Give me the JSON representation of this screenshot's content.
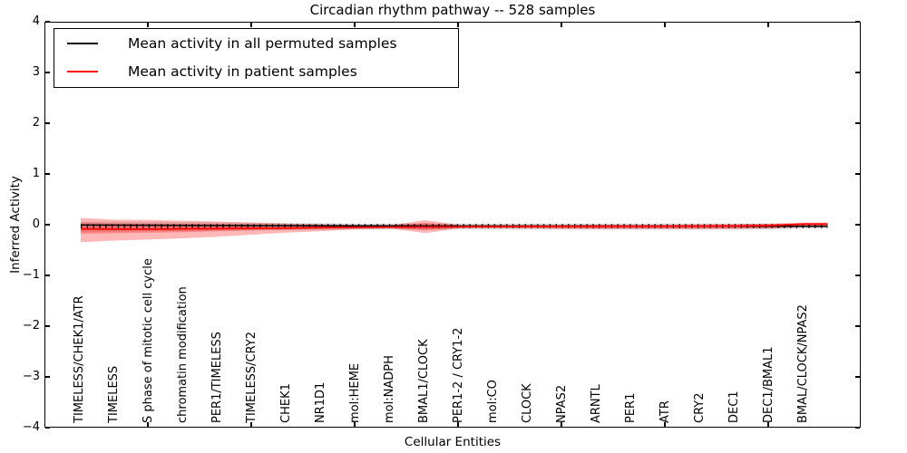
{
  "figure": {
    "title": "Circadian rhythm pathway -- 528 samples",
    "xlabel": "Cellular Entities",
    "ylabel": "Inferred Activity"
  },
  "legend": {
    "entries": [
      {
        "label": "Mean activity in all permuted samples",
        "color": "#000000"
      },
      {
        "label": "Mean activity in patient samples",
        "color": "#ff0000"
      }
    ]
  },
  "axes": {
    "y_tick_labels": [
      "4",
      "3",
      "2",
      "1",
      "0",
      "−1",
      "−2",
      "−3",
      "−4"
    ],
    "y_tick_values": [
      4,
      3,
      2,
      1,
      0,
      -1,
      -2,
      -3,
      -4
    ],
    "ylim": [
      -4,
      4
    ]
  },
  "colors": {
    "permuted_line": "#000000",
    "patient_line": "#ff0000",
    "patient_band_fill": "#ff0000",
    "permuted_band_fill": "#aaaaaa"
  },
  "chart_data": {
    "type": "line",
    "title": "Circadian rhythm pathway -- 528 samples",
    "xlabel": "Cellular Entities",
    "ylabel": "Inferred Activity",
    "ylim": [
      -4,
      4
    ],
    "grid": false,
    "legend_position": "upper left",
    "categories": [
      "TIMELESS/CHEK1/ATR",
      "TIMELESS",
      "S phase of mitotic cell cycle",
      "chromatin modification",
      "PER1/TIMELESS",
      "TIMELESS/CRY2",
      "CHEK1",
      "NR1D1",
      "mol:HEME",
      "mol:NADPH",
      "BMAL1/CLOCK",
      "PER1-2 / CRY1-2",
      "mol:CO",
      "CLOCK",
      "NPAS2",
      "ARNTL",
      "PER1",
      "ATR",
      "CRY2",
      "DEC1",
      "DEC1/BMAL1",
      "BMAL/CLOCK/NPAS2"
    ],
    "series": [
      {
        "name": "Mean activity in all permuted samples",
        "color": "#000000",
        "values": [
          0.02,
          0.018,
          0.016,
          0.014,
          0.012,
          0.01,
          0.008,
          0.006,
          0.005,
          0.004,
          0.003,
          0.002,
          0.001,
          0.0,
          0.0,
          -0.001,
          -0.002,
          -0.003,
          -0.004,
          -0.004,
          -0.005,
          -0.005
        ],
        "band_upper": [
          0.09,
          0.085,
          0.08,
          0.075,
          0.07,
          0.065,
          0.06,
          0.055,
          0.05,
          0.05,
          0.05,
          0.05,
          0.05,
          0.05,
          0.05,
          0.05,
          0.05,
          0.05,
          0.05,
          0.05,
          0.045,
          0.04
        ],
        "band_lower": [
          -0.11,
          -0.105,
          -0.1,
          -0.095,
          -0.09,
          -0.085,
          -0.08,
          -0.075,
          -0.07,
          -0.07,
          -0.07,
          -0.07,
          -0.07,
          -0.07,
          -0.07,
          -0.07,
          -0.07,
          -0.07,
          -0.07,
          -0.07,
          -0.065,
          -0.05
        ]
      },
      {
        "name": "Mean activity in patient samples",
        "color": "#ff0000",
        "values": [
          -0.055,
          -0.06,
          -0.06,
          -0.055,
          -0.05,
          -0.045,
          -0.04,
          -0.03,
          -0.025,
          -0.02,
          -0.018,
          -0.015,
          -0.012,
          -0.01,
          -0.008,
          -0.006,
          -0.005,
          -0.004,
          -0.002,
          0.0,
          0.01,
          0.04
        ],
        "band_upper": [
          0.16,
          0.125,
          0.12,
          0.105,
          0.09,
          0.07,
          0.05,
          0.035,
          0.025,
          0.02,
          0.115,
          0.02,
          0.025,
          0.025,
          0.025,
          0.03,
          0.03,
          0.03,
          0.035,
          0.04,
          0.05,
          0.07
        ],
        "band_lower": [
          -0.32,
          -0.285,
          -0.265,
          -0.24,
          -0.21,
          -0.17,
          -0.13,
          -0.1,
          -0.065,
          -0.05,
          -0.14,
          -0.04,
          -0.04,
          -0.05,
          -0.055,
          -0.06,
          -0.06,
          -0.06,
          -0.06,
          -0.055,
          -0.05,
          -0.02
        ],
        "inner_band_upper": [
          0.06,
          0.05,
          0.045,
          0.04,
          0.035,
          0.03,
          0.025,
          0.02,
          0.018,
          0.015,
          0.06,
          0.015,
          0.012,
          0.01,
          0.01,
          0.012,
          0.015,
          0.02,
          0.025,
          0.03,
          0.035,
          0.05
        ],
        "inner_band_lower": [
          -0.15,
          -0.14,
          -0.13,
          -0.12,
          -0.1,
          -0.085,
          -0.07,
          -0.055,
          -0.045,
          -0.035,
          -0.085,
          -0.03,
          -0.028,
          -0.03,
          -0.035,
          -0.04,
          -0.04,
          -0.04,
          -0.04,
          -0.04,
          -0.035,
          -0.01
        ]
      }
    ]
  }
}
